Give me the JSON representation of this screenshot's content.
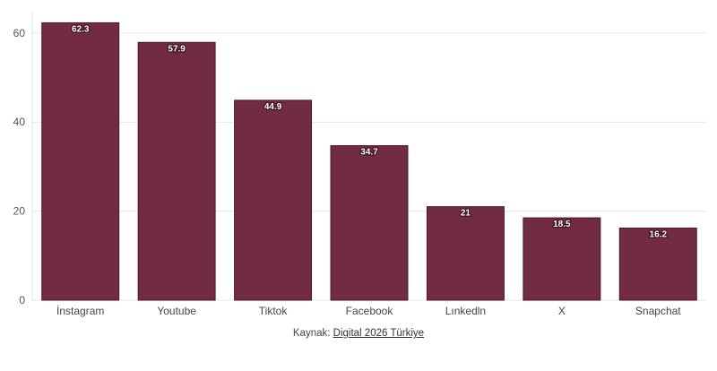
{
  "chart_data": {
    "type": "bar",
    "categories": [
      "İnstagram",
      "Youtube",
      "Tiktok",
      "Facebook",
      "Lınkedln",
      "X",
      "Snapchat"
    ],
    "values": [
      62.3,
      57.9,
      44.9,
      34.7,
      21,
      18.5,
      16.2
    ],
    "data_labels": [
      "62.3",
      "57.9",
      "44.9",
      "34.7",
      "21",
      "18.5",
      "16.2"
    ],
    "yticks": [
      0,
      20,
      40,
      60
    ],
    "ylim": [
      0,
      65
    ],
    "grid": true,
    "bar_color": "#722c42",
    "title": "",
    "xlabel": "",
    "ylabel": ""
  },
  "source": {
    "prefix": "Kaynak:",
    "link_text": "Digital 2026 Türkiye"
  }
}
